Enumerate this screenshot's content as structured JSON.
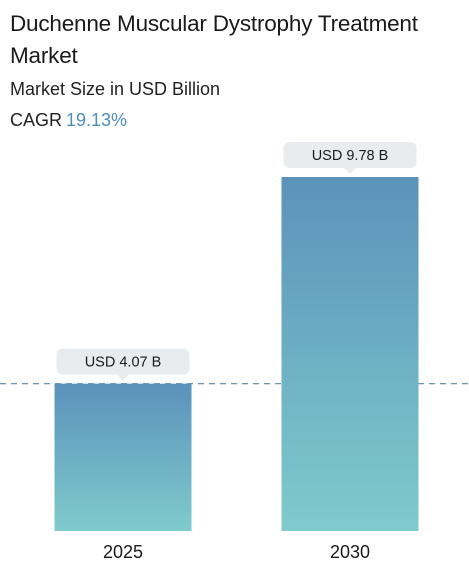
{
  "chart_data": {
    "type": "bar",
    "title": "Duchenne Muscular Dystrophy Treatment Market",
    "subtitle": "Market Size in USD Billion",
    "cagr_label": "CAGR",
    "cagr_value": "19.13%",
    "categories": [
      "2025",
      "2030"
    ],
    "values": [
      4.07,
      9.78
    ],
    "value_labels": [
      "USD 4.07 B",
      "USD 9.78 B"
    ],
    "ylim": [
      0,
      9.78
    ],
    "reference_line": {
      "value": 4.07,
      "style": "dashed"
    },
    "grid": false,
    "colors": {
      "bar_top": "#5b92bb",
      "bar_bottom": "#7fcbcc",
      "label_box": "#e9ecee",
      "reference_line": "#5a86ad"
    }
  }
}
